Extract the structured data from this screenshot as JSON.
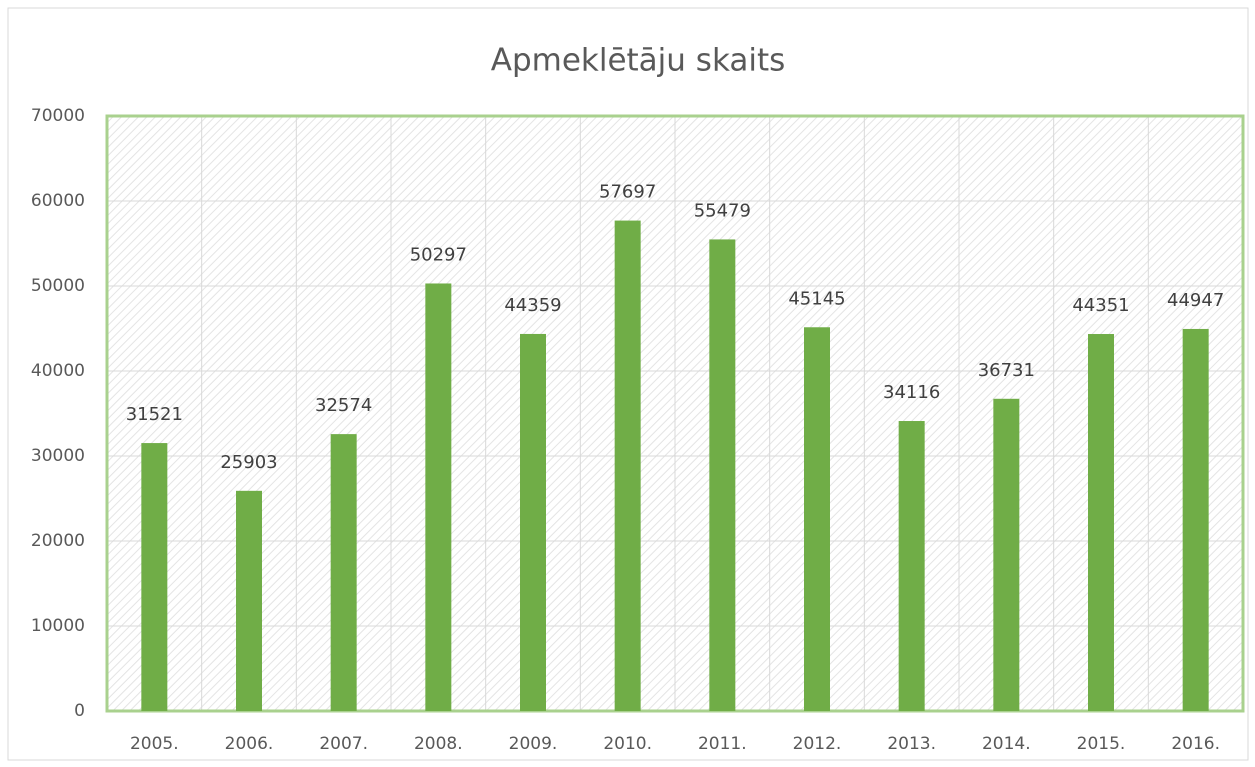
{
  "chart_data": {
    "type": "bar",
    "title": "Apmeklētāju skaits",
    "categories": [
      "2005.",
      "2006.",
      "2007.",
      "2008.",
      "2009.",
      "2010.",
      "2011.",
      "2012.",
      "2013.",
      "2014.",
      "2015.",
      "2016."
    ],
    "values": [
      31521,
      25903,
      32574,
      50297,
      44359,
      57697,
      55479,
      45145,
      34116,
      36731,
      44351,
      44947
    ],
    "color": "#70ad47",
    "ylim": [
      0,
      70000
    ],
    "yticks": [
      0,
      10000,
      20000,
      30000,
      40000,
      50000,
      60000,
      70000
    ],
    "grid": true
  }
}
